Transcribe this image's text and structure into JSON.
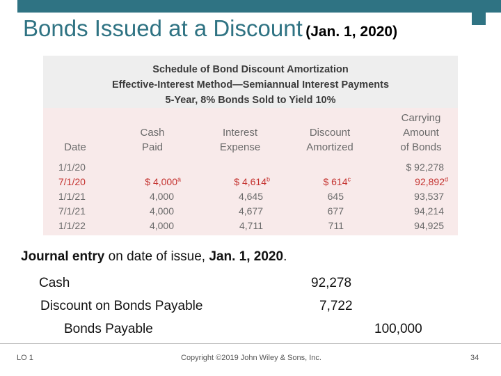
{
  "title": {
    "main": "Bonds Issued at a Discount",
    "date": "(Jan. 1, 2020)"
  },
  "schedule": {
    "heading": [
      "Schedule of Bond Discount Amortization",
      "Effective-Interest Method—Semiannual Interest Payments",
      "5-Year, 8% Bonds Sold to Yield 10%"
    ],
    "columns": {
      "date": [
        "Date"
      ],
      "cash": [
        "Cash",
        "Paid"
      ],
      "interest": [
        "Interest",
        "Expense"
      ],
      "discount": [
        "Discount",
        "Amortized"
      ],
      "carrying": [
        "Carrying",
        "Amount",
        "of Bonds"
      ]
    },
    "rows": [
      {
        "date": "1/1/20",
        "cash": "",
        "interest": "",
        "discount": "",
        "carrying": "$ 92,278",
        "highlight": false
      },
      {
        "date": "7/1/20",
        "cash": "$ 4,000",
        "cash_note": "a",
        "interest": "$ 4,614",
        "interest_note": "b",
        "discount": "$ 614",
        "discount_note": "c",
        "carrying": "92,892",
        "carrying_note": "d",
        "highlight": true
      },
      {
        "date": "1/1/21",
        "cash": "4,000",
        "interest": "4,645",
        "discount": "645",
        "carrying": "93,537",
        "highlight": false
      },
      {
        "date": "7/1/21",
        "cash": "4,000",
        "interest": "4,677",
        "discount": "677",
        "carrying": "94,214",
        "highlight": false
      },
      {
        "date": "1/1/22",
        "cash": "4,000",
        "interest": "4,711",
        "discount": "711",
        "carrying": "94,925",
        "highlight": false
      }
    ]
  },
  "journal": {
    "intro_bold": "Journal entry",
    "intro_rest": " on date of issue, ",
    "intro_date": "Jan. 1, 2020",
    "intro_end": ".",
    "lines": [
      {
        "account": "Cash",
        "debit": "92,278",
        "credit": ""
      },
      {
        "account": "Discount on Bonds Payable",
        "debit": "7,722",
        "credit": ""
      },
      {
        "account": "Bonds Payable",
        "debit": "",
        "credit": "100,000"
      }
    ]
  },
  "footer": {
    "left": "LO 1",
    "center": "Copyright ©2019 John Wiley & Sons, Inc.",
    "page": "34"
  }
}
